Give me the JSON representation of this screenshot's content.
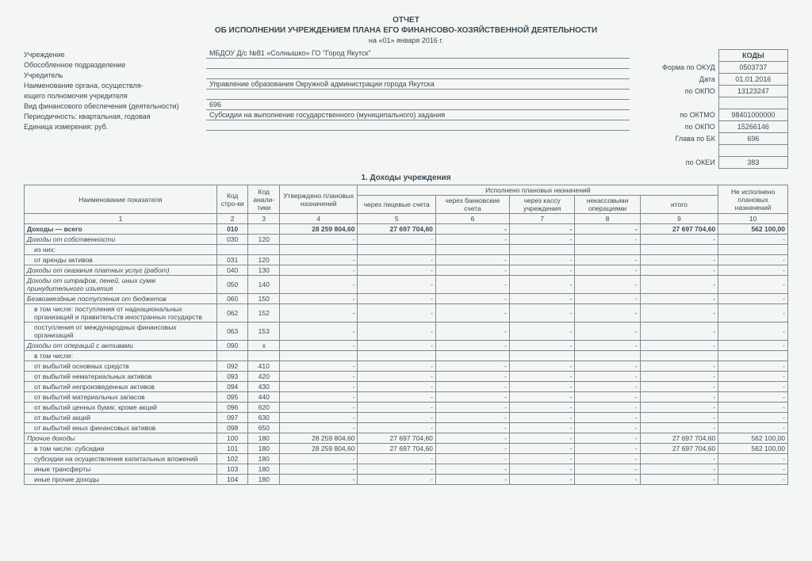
{
  "header": {
    "line1": "ОТЧЕТ",
    "line2": "ОБ ИСПОЛНЕНИИ УЧРЕЖДЕНИЕМ ПЛАНА ЕГО ФИНАНСОВО-ХОЗЯЙСТВЕННОЙ ДЕЯТЕЛЬНОСТИ",
    "date_line": "на «01» января 2016 г."
  },
  "meta": {
    "rows": [
      {
        "label": "Учреждение",
        "value": "МБДОУ Д/с №81 «Солнышко» ГО \"Город Якутск\""
      },
      {
        "label": "Обособленное подразделение",
        "value": ""
      },
      {
        "label": "Учредитель",
        "value": ""
      },
      {
        "label": "Наименование органа, осуществля-",
        "value": "Управление образования Окружной администрации города Якутска"
      },
      {
        "label": "ющего полномочия учредителя",
        "value": ""
      },
      {
        "label": "Вид финансового обеспечения (деятельности)",
        "value": "696"
      },
      {
        "label": "Периодичность: квартальная, годовая",
        "value": "Субсидии на выполнение государственного (муниципального) задания"
      },
      {
        "label": "Единица измерения:    руб.",
        "value": ""
      }
    ]
  },
  "codes": {
    "header": "КОДЫ",
    "rows": [
      {
        "lbl": "Форма по ОКУД",
        "val": "0503737"
      },
      {
        "lbl": "Дата",
        "val": "01.01.2016"
      },
      {
        "lbl": "по ОКПО",
        "val": "13123247"
      },
      {
        "lbl": "",
        "val": ""
      },
      {
        "lbl": "по ОКТМО",
        "val": "98401000000"
      },
      {
        "lbl": "по ОКПО",
        "val": "15266146"
      },
      {
        "lbl": "Глава по БК",
        "val": "696"
      },
      {
        "lbl": "",
        "val": ""
      },
      {
        "lbl": "по ОКЕИ",
        "val": "383"
      }
    ]
  },
  "section_title": "1. Доходы учреждения",
  "table": {
    "head": {
      "c1": "Наименование показателя",
      "c2": "Код стро-ки",
      "c3": "Код анали-тики",
      "c4": "Утверждено плановых назначений",
      "c5g": "Исполнено плановых назначений",
      "c5": "через лицевые счета",
      "c6": "через банковские счета",
      "c7": "через кассу учреждения",
      "c8": "некассовыми операциями",
      "c9": "итого",
      "c10": "Не исполнено плановых назначений",
      "n1": "1",
      "n2": "2",
      "n3": "3",
      "n4": "4",
      "n5": "5",
      "n6": "6",
      "n7": "7",
      "n8": "8",
      "n9": "9",
      "n10": "10"
    },
    "rows": [
      {
        "cls": "bold",
        "name": "Доходы — всего",
        "code": "010",
        "ana": "",
        "c4": "28 259 804,60",
        "c5": "27 697 704,60",
        "c6": "-",
        "c7": "-",
        "c8": "-",
        "c9": "27 697 704,60",
        "c10": "562 100,00"
      },
      {
        "cls": "ital",
        "name": "Доходы от собственности",
        "code": "030",
        "ana": "120",
        "c4": "-",
        "c5": "-",
        "c6": "-",
        "c7": "-",
        "c8": "-",
        "c9": "-",
        "c10": "-"
      },
      {
        "name": "из них:",
        "code": "",
        "ana": "",
        "c4": "",
        "c5": "",
        "c6": "",
        "c7": "",
        "c8": "",
        "c9": "",
        "c10": "",
        "indent": 1
      },
      {
        "name": "от аренды активов",
        "code": "031",
        "ana": "120",
        "c4": "-",
        "c5": "-",
        "c6": "-",
        "c7": "-",
        "c8": "-",
        "c9": "-",
        "c10": "-",
        "indent": 1
      },
      {
        "cls": "ital",
        "name": "Доходы от оказания платных услуг (работ)",
        "code": "040",
        "ana": "130",
        "c4": "-",
        "c5": "-",
        "c6": "-",
        "c7": "-",
        "c8": "-",
        "c9": "-",
        "c10": "-"
      },
      {
        "cls": "ital",
        "name": "Доходы от штрафов, пеней, иных сумм принудительного изъятия",
        "code": "050",
        "ana": "140",
        "c4": "-",
        "c5": "-",
        "c6": "-",
        "c7": "-",
        "c8": "-",
        "c9": "-",
        "c10": "-"
      },
      {
        "cls": "ital",
        "name": "Безвозмездные поступления от бюджетов",
        "code": "060",
        "ana": "150",
        "c4": "-",
        "c5": "-",
        "c6": "-",
        "c7": "-",
        "c8": "-",
        "c9": "-",
        "c10": "-"
      },
      {
        "name": "в том числе: поступления от наднациональных организаций и правительств иностранных государств",
        "code": "062",
        "ana": "152",
        "c4": "-",
        "c5": "-",
        "c6": "-",
        "c7": "-",
        "c8": "-",
        "c9": "-",
        "c10": "-",
        "indent": 1
      },
      {
        "name": "поступления от международных финансовых организаций",
        "code": "063",
        "ana": "153",
        "c4": "-",
        "c5": "-",
        "c6": "-",
        "c7": "-",
        "c8": "-",
        "c9": "-",
        "c10": "-",
        "indent": 1
      },
      {
        "cls": "ital",
        "name": "Доходы от операций с активами",
        "code": "090",
        "ana": "х",
        "c4": "-",
        "c5": "-",
        "c6": "-",
        "c7": "-",
        "c8": "-",
        "c9": "-",
        "c10": "-"
      },
      {
        "name": "в том числе:",
        "code": "",
        "ana": "",
        "c4": "",
        "c5": "",
        "c6": "",
        "c7": "",
        "c8": "",
        "c9": "",
        "c10": "",
        "indent": 1
      },
      {
        "name": "от выбытий основных средств",
        "code": "092",
        "ana": "410",
        "c4": "-",
        "c5": "-",
        "c6": "-",
        "c7": "-",
        "c8": "-",
        "c9": "-",
        "c10": "-",
        "indent": 1
      },
      {
        "name": "от выбытий нематериальных активов",
        "code": "093",
        "ana": "420",
        "c4": "-",
        "c5": "-",
        "c6": "-",
        "c7": "-",
        "c8": "-",
        "c9": "-",
        "c10": "-",
        "indent": 1
      },
      {
        "name": "от выбытий непроизведенных активов",
        "code": "094",
        "ana": "430",
        "c4": "-",
        "c5": "-",
        "c6": "-",
        "c7": "-",
        "c8": "-",
        "c9": "-",
        "c10": "-",
        "indent": 1
      },
      {
        "name": "от выбытий материальных запасов",
        "code": "095",
        "ana": "440",
        "c4": "-",
        "c5": "-",
        "c6": "-",
        "c7": "-",
        "c8": "-",
        "c9": "-",
        "c10": "-",
        "indent": 1
      },
      {
        "name": "от выбытий ценных бумаг, кроме акций",
        "code": "096",
        "ana": "620",
        "c4": "-",
        "c5": "-",
        "c6": "-",
        "c7": "-",
        "c8": "-",
        "c9": "-",
        "c10": "-",
        "indent": 1
      },
      {
        "name": "от выбытий акций",
        "code": "097",
        "ana": "630",
        "c4": "-",
        "c5": "-",
        "c6": "-",
        "c7": "-",
        "c8": "-",
        "c9": "-",
        "c10": "-",
        "indent": 1
      },
      {
        "name": "от выбытий иных финансовых активов",
        "code": "098",
        "ana": "650",
        "c4": "-",
        "c5": "-",
        "c6": "-",
        "c7": "-",
        "c8": "-",
        "c9": "-",
        "c10": "-",
        "indent": 1
      },
      {
        "cls": "ital",
        "name": "Прочие доходы",
        "code": "100",
        "ana": "180",
        "c4": "28 259 804,60",
        "c5": "27 697 704,60",
        "c6": "-",
        "c7": "-",
        "c8": "-",
        "c9": "27 697 704,60",
        "c10": "562 100,00"
      },
      {
        "name": "в том числе: субсидии",
        "code": "101",
        "ana": "180",
        "c4": "28 259 804,60",
        "c5": "27 697 704,60",
        "c6": "-",
        "c7": "-",
        "c8": "-",
        "c9": "27 697 704,60",
        "c10": "562 100,00",
        "indent": 1
      },
      {
        "name": "субсидии на осуществление капитальных вложений",
        "code": "102",
        "ana": "180",
        "c4": "-",
        "c5": "-",
        "c6": "-",
        "c7": "-",
        "c8": "-",
        "c9": "-",
        "c10": "-",
        "indent": 1
      },
      {
        "name": "иные трансферты",
        "code": "103",
        "ana": "180",
        "c4": "-",
        "c5": "-",
        "c6": "-",
        "c7": "-",
        "c8": "-",
        "c9": "-",
        "c10": "-",
        "indent": 1
      },
      {
        "name": "иные прочие доходы",
        "code": "104",
        "ana": "180",
        "c4": "-",
        "c5": "-",
        "c6": "-",
        "c7": "-",
        "c8": "-",
        "c9": "-",
        "c10": "-",
        "indent": 1
      }
    ]
  }
}
